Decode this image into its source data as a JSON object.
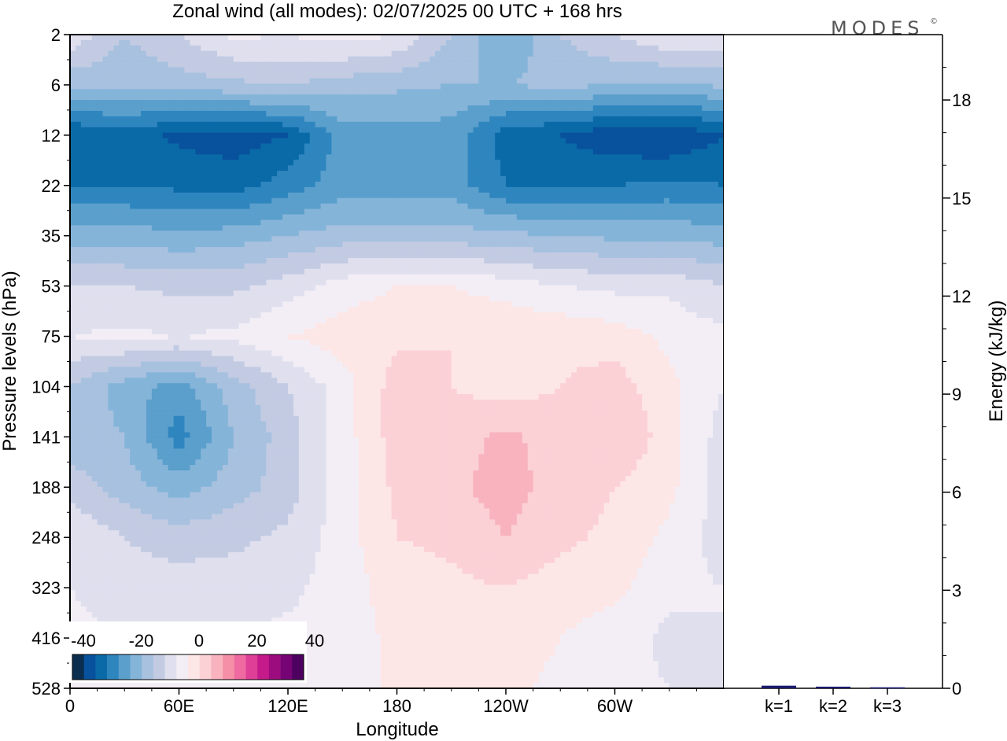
{
  "chart_data": {
    "type": "heatmap",
    "title": "Zonal wind (all modes):  02/07/2025  00 UTC  + 168 hrs",
    "xlabel": "Longitude",
    "ylabel": "Pressure levels (hPa)",
    "x_ticks": [
      "0",
      "60E",
      "120E",
      "180",
      "120W",
      "60W"
    ],
    "y_ticks": [
      "2",
      "6",
      "12",
      "22",
      "35",
      "53",
      "75",
      "104",
      "141",
      "188",
      "248",
      "323",
      "416",
      "528"
    ],
    "y_scale": "log",
    "colorbar": {
      "tick_labels": [
        "-40",
        "-20",
        "0",
        "20",
        "40"
      ],
      "range": [
        -40,
        40
      ],
      "colors": [
        "#0b2e4f",
        "#08519c",
        "#0a6aa7",
        "#2f86bf",
        "#5b9fcc",
        "#85b4d9",
        "#a7c1df",
        "#c3cbe3",
        "#dfdfee",
        "#f3eef5",
        "#fde6e6",
        "#fbd1d6",
        "#f8b3bf",
        "#f48fa7",
        "#ee6aa0",
        "#df3f97",
        "#c51b8a",
        "#9d0c7f",
        "#760474",
        "#4d0060"
      ]
    },
    "wind_field": {
      "levels_hPa": [
        2,
        6,
        12,
        22,
        35,
        53,
        75,
        104,
        141,
        188,
        248,
        323,
        416,
        528
      ],
      "longitudes_deg": [
        0,
        30,
        60,
        90,
        120,
        150,
        180,
        210,
        240,
        270,
        300,
        330,
        360
      ],
      "values_m_s": [
        [
          -5,
          -12,
          -8,
          -3,
          -4,
          -2,
          -4,
          -12,
          -20,
          -12,
          -8,
          -4,
          -5
        ],
        [
          -15,
          -15,
          -14,
          -13,
          -12,
          -14,
          -15,
          -16,
          -16,
          -15,
          -16,
          -17,
          -15
        ],
        [
          -32,
          -30,
          -33,
          -34,
          -32,
          -22,
          -22,
          -22,
          -30,
          -32,
          -35,
          -36,
          -32
        ],
        [
          -28,
          -28,
          -29,
          -30,
          -26,
          -22,
          -22,
          -22,
          -28,
          -29,
          -28,
          -27,
          -28
        ],
        [
          -18,
          -18,
          -19,
          -18,
          -16,
          -14,
          -14,
          -14,
          -15,
          -16,
          -17,
          -17,
          -18
        ],
        [
          -8,
          -8,
          -9,
          -9,
          -6,
          -2,
          0,
          0,
          -2,
          -4,
          -5,
          -5,
          -8
        ],
        [
          -4,
          -3,
          -4,
          -3,
          0,
          2,
          3,
          4,
          4,
          3,
          2,
          -1,
          -3
        ],
        [
          -12,
          -18,
          -22,
          -14,
          -8,
          -2,
          6,
          4,
          2,
          4,
          6,
          1,
          -4
        ],
        [
          -14,
          -16,
          -26,
          -16,
          -10,
          -2,
          6,
          6,
          9,
          6,
          8,
          2,
          -6
        ],
        [
          -10,
          -14,
          -18,
          -14,
          -10,
          -2,
          5,
          7,
          10,
          6,
          4,
          1,
          -6
        ],
        [
          -4,
          -8,
          -10,
          -9,
          -7,
          -2,
          4,
          5,
          8,
          5,
          3,
          -1,
          -6
        ],
        [
          -4,
          -6,
          -6,
          -6,
          -5,
          -2,
          2,
          3,
          4,
          2,
          1,
          -3,
          -4
        ],
        [
          -3,
          -4,
          -4,
          -4,
          -3,
          -2,
          1,
          2,
          2,
          0,
          -2,
          -5,
          -4
        ],
        [
          -4,
          -4,
          -3,
          -3,
          -3,
          -2,
          1,
          1,
          1,
          -1,
          -3,
          -4,
          -4
        ]
      ]
    },
    "energy_panel": {
      "ylabel": "Energy (kJ/kg)",
      "y_ticks": [
        "0",
        "3",
        "6",
        "9",
        "12",
        "15",
        "18"
      ],
      "ylim": [
        0,
        20
      ],
      "categories": [
        "k=1",
        "k=2",
        "k=3"
      ],
      "values": [
        0.08,
        0.05,
        0.03
      ],
      "bar_color": "#1a1a6e"
    }
  },
  "logo": {
    "text": "MODES",
    "mark": "©"
  }
}
